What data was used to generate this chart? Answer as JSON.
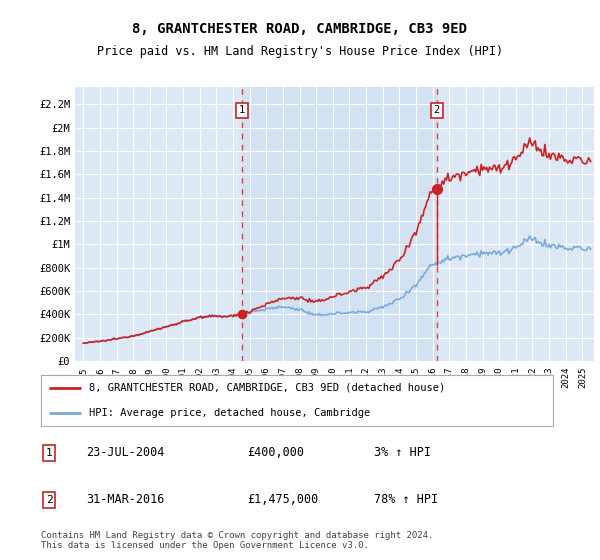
{
  "title": "8, GRANTCHESTER ROAD, CAMBRIDGE, CB3 9ED",
  "subtitle": "Price paid vs. HM Land Registry's House Price Index (HPI)",
  "ylabel_ticks": [
    "£0",
    "£200K",
    "£400K",
    "£600K",
    "£800K",
    "£1M",
    "£1.2M",
    "£1.4M",
    "£1.6M",
    "£1.8M",
    "£2M",
    "£2.2M"
  ],
  "ytick_values": [
    0,
    200000,
    400000,
    600000,
    800000,
    1000000,
    1200000,
    1400000,
    1600000,
    1800000,
    2000000,
    2200000
  ],
  "xlim_start": 1994.5,
  "xlim_end": 2025.7,
  "ylim": [
    0,
    2350000
  ],
  "background_color": "#dce8f5",
  "grid_color": "#ffffff",
  "sale1_x": 2004.55,
  "sale1_y": 400000,
  "sale2_x": 2016.25,
  "sale2_y": 1475000,
  "hpi_color": "#7aaadd",
  "price_color": "#cc2222",
  "vline_color": "#dd4444",
  "annotation_box_edgecolor": "#cc2222",
  "legend_label_price": "8, GRANTCHESTER ROAD, CAMBRIDGE, CB3 9ED (detached house)",
  "legend_label_hpi": "HPI: Average price, detached house, Cambridge",
  "note1_label": "1",
  "note1_date": "23-JUL-2004",
  "note1_price": "£400,000",
  "note1_hpi": "3% ↑ HPI",
  "note2_label": "2",
  "note2_date": "31-MAR-2016",
  "note2_price": "£1,475,000",
  "note2_hpi": "78% ↑ HPI",
  "footer": "Contains HM Land Registry data © Crown copyright and database right 2024.\nThis data is licensed under the Open Government Licence v3.0."
}
